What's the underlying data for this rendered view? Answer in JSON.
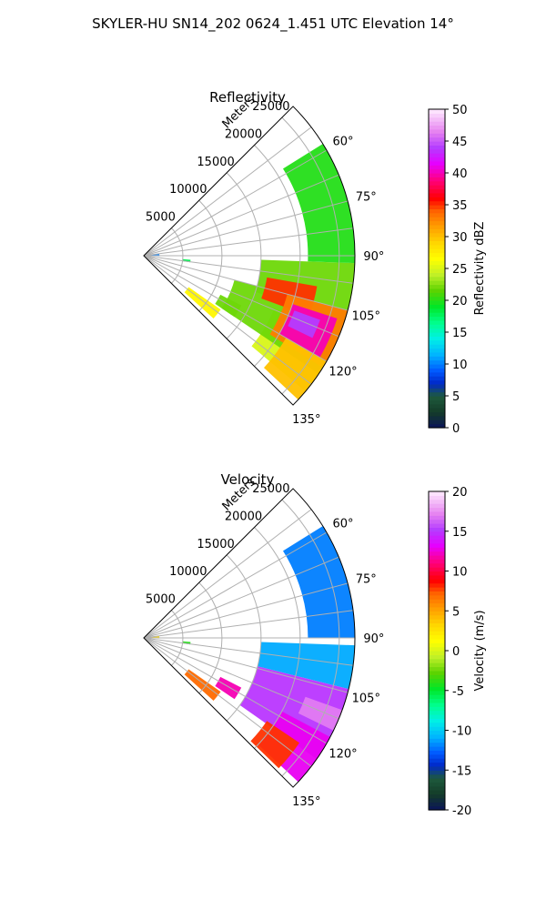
{
  "figure": {
    "suptitle": "SKYLER-HU  SN14_202  0624_1.451 UTC Elevation 14°"
  },
  "chart_data": [
    {
      "type": "heatmap",
      "subtype": "polar-sector",
      "title": "Reflectivity",
      "radial_label": "Meters",
      "radial_ticks": [
        5000,
        10000,
        15000,
        20000,
        25000
      ],
      "radial_max": 27000,
      "angle_ticks": [
        60,
        75,
        90,
        105,
        120,
        135
      ],
      "angle_range": [
        45,
        135
      ],
      "colorbar": {
        "label": "Reflectivity dBZ",
        "ticks": [
          0,
          5,
          10,
          15,
          20,
          25,
          30,
          35,
          40,
          45,
          50
        ],
        "range": [
          0,
          50
        ]
      },
      "regions": [
        {
          "az": [
            112,
            130
          ],
          "r": [
            18000,
            27000
          ],
          "value": 25
        },
        {
          "az": [
            105,
            124
          ],
          "r": [
            12000,
            27000
          ],
          "value": 22
        },
        {
          "az": [
            92,
            108
          ],
          "r": [
            15000,
            27000
          ],
          "value": 22
        },
        {
          "az": [
            100,
            110
          ],
          "r": [
            16000,
            22500
          ],
          "value": 35
        },
        {
          "az": [
            105,
            122
          ],
          "r": [
            19000,
            27000
          ],
          "value": 33
        },
        {
          "az": [
            108,
            120
          ],
          "r": [
            20000,
            26000
          ],
          "value": 40
        },
        {
          "az": [
            110,
            116
          ],
          "r": [
            20500,
            24000
          ],
          "value": 44
        },
        {
          "az": [
            120,
            133
          ],
          "r": [
            21000,
            27000
          ],
          "value": 30
        },
        {
          "az": [
            58,
            92
          ],
          "r": [
            21000,
            27000
          ],
          "value": 20
        },
        {
          "az": [
            125,
            132
          ],
          "r": [
            7000,
            12000
          ],
          "value": 27
        },
        {
          "az": [
            117,
            124
          ],
          "r": [
            11000,
            14000
          ],
          "value": 22
        },
        {
          "az": [
            95,
            98
          ],
          "r": [
            5000,
            6000
          ],
          "value": 18
        },
        {
          "az": [
            82,
            92
          ],
          "r": [
            500,
            2000
          ],
          "value": 10
        }
      ]
    },
    {
      "type": "heatmap",
      "subtype": "polar-sector",
      "title": "Velocity",
      "radial_label": "Meters",
      "radial_ticks": [
        5000,
        10000,
        15000,
        20000,
        25000
      ],
      "radial_max": 27000,
      "angle_ticks": [
        60,
        75,
        90,
        105,
        120,
        135
      ],
      "angle_range": [
        45,
        135
      ],
      "colorbar": {
        "label": "Velocity (m/s)",
        "ticks": [
          -20,
          -15,
          -10,
          -5,
          0,
          5,
          10,
          15,
          20
        ],
        "range": [
          -20,
          20
        ]
      },
      "regions": [
        {
          "az": [
            92,
            104
          ],
          "r": [
            15000,
            27000
          ],
          "value": -11
        },
        {
          "az": [
            58,
            90
          ],
          "r": [
            21000,
            27000
          ],
          "value": -12
        },
        {
          "az": [
            104,
            125
          ],
          "r": [
            15000,
            27000
          ],
          "value": 15
        },
        {
          "az": [
            118,
            133
          ],
          "r": [
            20000,
            27000
          ],
          "value": 13
        },
        {
          "az": [
            110,
            116
          ],
          "r": [
            22000,
            27000
          ],
          "value": 17
        },
        {
          "az": [
            125,
            132
          ],
          "r": [
            7000,
            12000
          ],
          "value": 7
        },
        {
          "az": [
            117,
            124
          ],
          "r": [
            11000,
            14000
          ],
          "value": 12
        },
        {
          "az": [
            124,
            134
          ],
          "r": [
            19000,
            24000
          ],
          "value": 8
        },
        {
          "az": [
            95,
            98
          ],
          "r": [
            5000,
            6000
          ],
          "value": -4
        },
        {
          "az": [
            82,
            92
          ],
          "r": [
            500,
            2000
          ],
          "value": 3
        }
      ]
    }
  ]
}
